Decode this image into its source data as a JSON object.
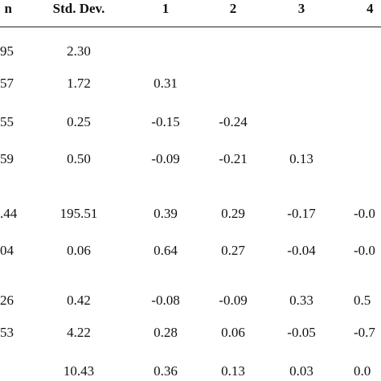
{
  "table": {
    "headers": {
      "mean": "n",
      "std_dev": "Std. Dev.",
      "c1": "1",
      "c2": "2",
      "c3": "3",
      "c4": "4"
    },
    "rows": [
      {
        "mean": "95",
        "std_dev": "2.30",
        "c1": "",
        "c2": "",
        "c3": "",
        "c4": ""
      },
      {
        "mean": "57",
        "std_dev": "1.72",
        "c1": "0.31",
        "c2": "",
        "c3": "",
        "c4": ""
      },
      {
        "mean": "55",
        "std_dev": "0.25",
        "c1": "-0.15",
        "c2": "-0.24",
        "c3": "",
        "c4": ""
      },
      {
        "mean": "59",
        "std_dev": "0.50",
        "c1": "-0.09",
        "c2": "-0.21",
        "c3": "0.13",
        "c4": ""
      },
      {
        "mean": ".44",
        "std_dev": "195.51",
        "c1": "0.39",
        "c2": "0.29",
        "c3": "-0.17",
        "c4": "-0.0"
      },
      {
        "mean": "04",
        "std_dev": "0.06",
        "c1": "0.64",
        "c2": "0.27",
        "c3": "-0.04",
        "c4": "-0.0"
      },
      {
        "mean": "26",
        "std_dev": "0.42",
        "c1": "-0.08",
        "c2": "-0.09",
        "c3": "0.33",
        "c4": "0.5"
      },
      {
        "mean": "53",
        "std_dev": "4.22",
        "c1": "0.28",
        "c2": "0.06",
        "c3": "-0.05",
        "c4": "-0.7"
      },
      {
        "mean": "",
        "std_dev": "10.43",
        "c1": "0.36",
        "c2": "0.13",
        "c3": "0.03",
        "c4": "0.0"
      }
    ]
  }
}
